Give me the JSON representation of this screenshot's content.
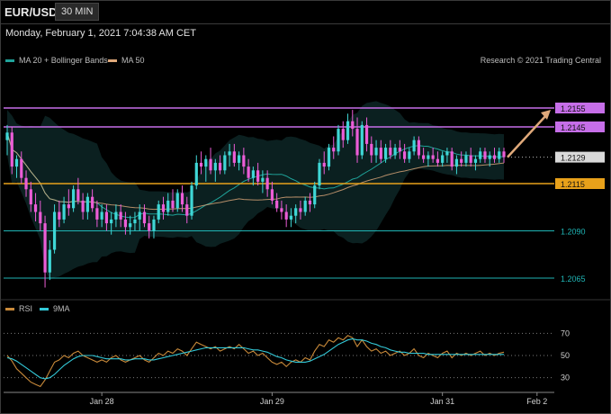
{
  "header": {
    "symbol": "EUR/USD",
    "interval": "30 MIN"
  },
  "datetime": "Monday, February 1, 2021 7:04:38 AM CET",
  "legend": [
    {
      "label": "MA 20 + Bollinger Bands",
      "color": "#1fa39a"
    },
    {
      "label": "MA 50",
      "color": "#e0a97a"
    }
  ],
  "credit": "Research © 2021 Trading Central",
  "rsi_legend": [
    {
      "label": "RSI",
      "color": "#c98a3a"
    },
    {
      "label": "9MA",
      "color": "#33c9d8"
    }
  ],
  "colors": {
    "up": "#3fd7d6",
    "down": "#ec5dd7",
    "resistance": "#c66ee8",
    "pivot": "#e8a11a",
    "support": "#1fb5b5",
    "projection": "#e0a97a"
  },
  "chart_data": [
    {
      "type": "candlestick",
      "title": "EUR/USD",
      "ylim": [
        1.2055,
        1.2175
      ],
      "levels": [
        {
          "value": 1.2155,
          "label": "1.2155",
          "kind": "resistance"
        },
        {
          "value": 1.2145,
          "label": "1.2145",
          "kind": "resistance"
        },
        {
          "value": 1.2129,
          "label": "1.2129",
          "kind": "last"
        },
        {
          "value": 1.2115,
          "label": "1.2115",
          "kind": "pivot"
        },
        {
          "value": 1.209,
          "label": "1.2090",
          "kind": "support"
        },
        {
          "value": 1.2065,
          "label": "1.2065",
          "kind": "support"
        }
      ],
      "x_ticks": [
        "Jan 28",
        "Jan 29",
        "Jan 31",
        "Feb 2"
      ],
      "x_tick_index": [
        20,
        56,
        92,
        112
      ],
      "projection": {
        "from": 1.2129,
        "to": 1.2155
      },
      "ohlc": [
        [
          1.2138,
          1.2146,
          1.213,
          1.2142
        ],
        [
          1.2142,
          1.2145,
          1.212,
          1.2124
        ],
        [
          1.2124,
          1.213,
          1.2118,
          1.2128
        ],
        [
          1.2128,
          1.2132,
          1.2115,
          1.2118
        ],
        [
          1.2118,
          1.2122,
          1.2108,
          1.2112
        ],
        [
          1.2112,
          1.2116,
          1.21,
          1.2104
        ],
        [
          1.2104,
          1.211,
          1.2095,
          1.21
        ],
        [
          1.21,
          1.2106,
          1.209,
          1.2094
        ],
        [
          1.2094,
          1.2098,
          1.206,
          1.2068
        ],
        [
          1.2068,
          1.2085,
          1.2064,
          1.208
        ],
        [
          1.208,
          1.2104,
          1.2078,
          1.21
        ],
        [
          1.21,
          1.2106,
          1.2092,
          1.2096
        ],
        [
          1.2096,
          1.2108,
          1.2094,
          1.2104
        ],
        [
          1.2104,
          1.2112,
          1.2098,
          1.2102
        ],
        [
          1.2102,
          1.2114,
          1.21,
          1.2112
        ],
        [
          1.2112,
          1.2118,
          1.2104,
          1.2106
        ],
        [
          1.2106,
          1.211,
          1.2096,
          1.21
        ],
        [
          1.21,
          1.211,
          1.2096,
          1.2108
        ],
        [
          1.2108,
          1.2112,
          1.21,
          1.2102
        ],
        [
          1.2102,
          1.2106,
          1.2092,
          1.2096
        ],
        [
          1.2096,
          1.2104,
          1.2092,
          1.21
        ],
        [
          1.21,
          1.2104,
          1.209,
          1.2094
        ],
        [
          1.2094,
          1.21,
          1.2088,
          1.2096
        ],
        [
          1.2096,
          1.2104,
          1.2092,
          1.21
        ],
        [
          1.21,
          1.2104,
          1.2092,
          1.2096
        ],
        [
          1.2096,
          1.21,
          1.2088,
          1.2092
        ],
        [
          1.2092,
          1.2098,
          1.2088,
          1.2094
        ],
        [
          1.2094,
          1.21,
          1.209,
          1.2096
        ],
        [
          1.2096,
          1.2104,
          1.209,
          1.21
        ],
        [
          1.21,
          1.2104,
          1.2092,
          1.2094
        ],
        [
          1.2094,
          1.2098,
          1.2086,
          1.209
        ],
        [
          1.209,
          1.2098,
          1.2086,
          1.2096
        ],
        [
          1.2096,
          1.2106,
          1.2094,
          1.2104
        ],
        [
          1.2104,
          1.2108,
          1.2096,
          1.21
        ],
        [
          1.21,
          1.211,
          1.2098,
          1.2106
        ],
        [
          1.2106,
          1.2112,
          1.21,
          1.2102
        ],
        [
          1.2102,
          1.2112,
          1.21,
          1.211
        ],
        [
          1.211,
          1.2114,
          1.21,
          1.2104
        ],
        [
          1.2104,
          1.2108,
          1.2094,
          1.2098
        ],
        [
          1.2098,
          1.2116,
          1.2096,
          1.2114
        ],
        [
          1.2114,
          1.213,
          1.2112,
          1.2126
        ],
        [
          1.2126,
          1.2132,
          1.212,
          1.2124
        ],
        [
          1.2124,
          1.213,
          1.2116,
          1.2128
        ],
        [
          1.2128,
          1.2134,
          1.212,
          1.2122
        ],
        [
          1.2122,
          1.2128,
          1.2116,
          1.2126
        ],
        [
          1.2126,
          1.213,
          1.212,
          1.2122
        ],
        [
          1.2122,
          1.2132,
          1.212,
          1.213
        ],
        [
          1.213,
          1.2136,
          1.2124,
          1.2132
        ],
        [
          1.2132,
          1.2136,
          1.2124,
          1.2126
        ],
        [
          1.2126,
          1.2132,
          1.2122,
          1.213
        ],
        [
          1.213,
          1.2134,
          1.212,
          1.2124
        ],
        [
          1.2124,
          1.2128,
          1.2116,
          1.2118
        ],
        [
          1.2118,
          1.2124,
          1.2114,
          1.2122
        ],
        [
          1.2122,
          1.2126,
          1.2114,
          1.2116
        ],
        [
          1.2116,
          1.2122,
          1.211,
          1.2118
        ],
        [
          1.2118,
          1.2122,
          1.2108,
          1.2112
        ],
        [
          1.2112,
          1.2116,
          1.2104,
          1.2106
        ],
        [
          1.2106,
          1.211,
          1.21,
          1.2102
        ],
        [
          1.2102,
          1.2106,
          1.2096,
          1.21
        ],
        [
          1.21,
          1.2104,
          1.2092,
          1.2096
        ],
        [
          1.2096,
          1.2102,
          1.2092,
          1.2098
        ],
        [
          1.2098,
          1.2104,
          1.2094,
          1.2102
        ],
        [
          1.2102,
          1.2106,
          1.2096,
          1.21
        ],
        [
          1.21,
          1.2108,
          1.2098,
          1.2106
        ],
        [
          1.2106,
          1.211,
          1.21,
          1.2104
        ],
        [
          1.2104,
          1.2116,
          1.2102,
          1.2114
        ],
        [
          1.2114,
          1.2128,
          1.2112,
          1.2126
        ],
        [
          1.2126,
          1.2132,
          1.212,
          1.2124
        ],
        [
          1.2124,
          1.2136,
          1.2122,
          1.2134
        ],
        [
          1.2134,
          1.214,
          1.2128,
          1.2132
        ],
        [
          1.2132,
          1.2146,
          1.213,
          1.2144
        ],
        [
          1.2144,
          1.2148,
          1.2134,
          1.2138
        ],
        [
          1.2138,
          1.2152,
          1.2136,
          1.2148
        ],
        [
          1.2148,
          1.2154,
          1.214,
          1.2144
        ],
        [
          1.2144,
          1.215,
          1.2126,
          1.213
        ],
        [
          1.213,
          1.2148,
          1.2128,
          1.2146
        ],
        [
          1.2146,
          1.215,
          1.2132,
          1.2136
        ],
        [
          1.2136,
          1.214,
          1.2126,
          1.213
        ],
        [
          1.213,
          1.2138,
          1.2126,
          1.2134
        ],
        [
          1.2134,
          1.2138,
          1.2126,
          1.2128
        ],
        [
          1.2128,
          1.2136,
          1.2126,
          1.2134
        ],
        [
          1.2134,
          1.2138,
          1.2128,
          1.213
        ],
        [
          1.213,
          1.2136,
          1.2128,
          1.2134
        ],
        [
          1.2134,
          1.2138,
          1.2128,
          1.2132
        ],
        [
          1.2132,
          1.2136,
          1.2126,
          1.2128
        ],
        [
          1.2128,
          1.2134,
          1.2126,
          1.2132
        ],
        [
          1.2132,
          1.214,
          1.213,
          1.2138
        ],
        [
          1.2138,
          1.214,
          1.2128,
          1.213
        ],
        [
          1.213,
          1.2134,
          1.2126,
          1.2128
        ],
        [
          1.2128,
          1.2132,
          1.2124,
          1.213
        ],
        [
          1.213,
          1.2134,
          1.2126,
          1.2128
        ],
        [
          1.2128,
          1.2132,
          1.2124,
          1.2126
        ],
        [
          1.2126,
          1.2132,
          1.2124,
          1.213
        ],
        [
          1.213,
          1.2134,
          1.2126,
          1.2132
        ],
        [
          1.2132,
          1.2134,
          1.2122,
          1.2124
        ],
        [
          1.2124,
          1.213,
          1.212,
          1.2128
        ],
        [
          1.2128,
          1.2132,
          1.2124,
          1.2126
        ],
        [
          1.2126,
          1.2132,
          1.2124,
          1.213
        ],
        [
          1.213,
          1.2134,
          1.2124,
          1.2126
        ],
        [
          1.2126,
          1.213,
          1.2122,
          1.2128
        ],
        [
          1.2128,
          1.2134,
          1.2126,
          1.2132
        ],
        [
          1.2132,
          1.2134,
          1.2126,
          1.2128
        ],
        [
          1.2128,
          1.2132,
          1.2124,
          1.213
        ],
        [
          1.213,
          1.2134,
          1.2126,
          1.2128
        ],
        [
          1.2128,
          1.2134,
          1.2126,
          1.2132
        ],
        [
          1.2132,
          1.2134,
          1.2126,
          1.2129
        ]
      ]
    },
    {
      "type": "line",
      "title": "RSI",
      "ylim": [
        20,
        80
      ],
      "y_ticks": [
        70,
        50,
        30
      ],
      "series": [
        {
          "name": "RSI",
          "values": [
            50,
            45,
            38,
            34,
            30,
            26,
            24,
            22,
            28,
            36,
            44,
            46,
            50,
            48,
            52,
            54,
            50,
            48,
            46,
            44,
            46,
            44,
            48,
            50,
            46,
            44,
            46,
            48,
            50,
            46,
            44,
            48,
            52,
            50,
            54,
            52,
            56,
            54,
            50,
            56,
            62,
            60,
            58,
            56,
            58,
            54,
            56,
            58,
            56,
            60,
            56,
            52,
            54,
            50,
            52,
            48,
            44,
            42,
            44,
            40,
            44,
            46,
            44,
            48,
            46,
            54,
            60,
            58,
            64,
            62,
            66,
            64,
            68,
            66,
            58,
            64,
            58,
            54,
            56,
            52,
            54,
            50,
            52,
            54,
            50,
            52,
            56,
            50,
            48,
            52,
            50,
            48,
            52,
            54,
            48,
            52,
            50,
            52,
            50,
            52,
            54,
            50,
            52,
            50,
            52,
            53
          ]
        },
        {
          "name": "9MA",
          "values": [
            48,
            47,
            45,
            42,
            39,
            36,
            33,
            30,
            29,
            30,
            33,
            37,
            41,
            44,
            47,
            49,
            50,
            50,
            50,
            49,
            48,
            47,
            47,
            47,
            47,
            46,
            46,
            47,
            47,
            47,
            46,
            46,
            47,
            48,
            49,
            50,
            51,
            52,
            53,
            54,
            55,
            56,
            57,
            57,
            57,
            57,
            57,
            57,
            57,
            57,
            57,
            56,
            55,
            55,
            54,
            53,
            51,
            49,
            48,
            46,
            45,
            44,
            44,
            44,
            45,
            47,
            49,
            51,
            54,
            57,
            60,
            62,
            64,
            65,
            64,
            64,
            63,
            61,
            60,
            58,
            57,
            55,
            54,
            53,
            53,
            52,
            52,
            52,
            52,
            51,
            51,
            51,
            51,
            51,
            51,
            51,
            51,
            51,
            51,
            51,
            51,
            51,
            51,
            51,
            51,
            51
          ]
        }
      ]
    }
  ]
}
